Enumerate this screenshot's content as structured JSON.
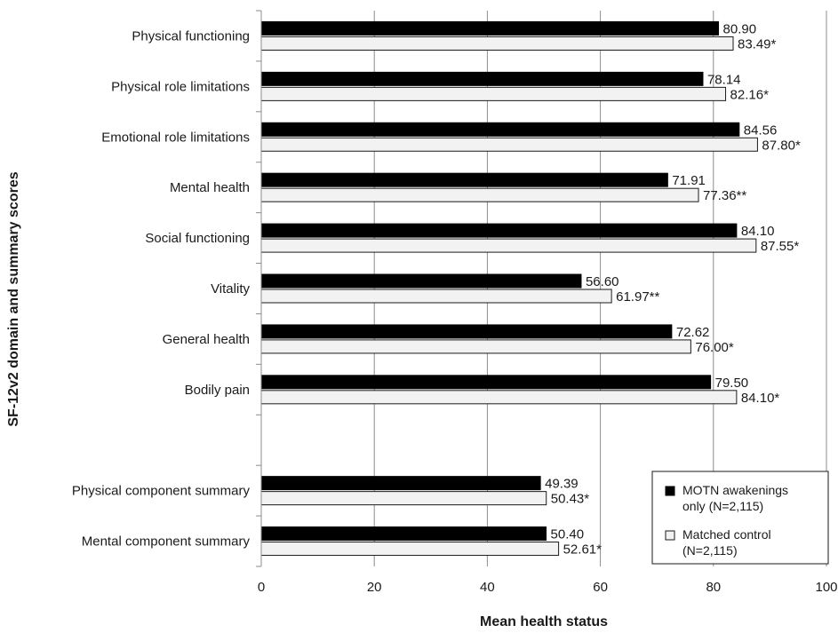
{
  "chart_data": {
    "type": "bar",
    "orientation": "horizontal",
    "xlabel": "Mean health status",
    "ylabel": "SF-12v2 domain and summary scores",
    "xlim": [
      0,
      100
    ],
    "xticks": [
      0,
      20,
      40,
      60,
      80,
      100
    ],
    "grid": "vertical",
    "legend_position": "bottom-right",
    "categories": [
      "Physical functioning",
      "Physical role limitations",
      "Emotional role limitations",
      "Mental health",
      "Social functioning",
      "Vitality",
      "General health",
      "Bodily pain",
      "",
      "Physical component summary",
      "Mental component summary"
    ],
    "series": [
      {
        "name": "MOTN awakenings only (N=2,115)",
        "color": "#000000",
        "values": [
          80.9,
          78.14,
          84.56,
          71.91,
          84.1,
          56.6,
          72.62,
          79.5,
          null,
          49.39,
          50.4
        ],
        "labels": [
          "80.90",
          "78.14",
          "84.56",
          "71.91",
          "84.10",
          "56.60",
          "72.62",
          "79.50",
          "",
          "49.39",
          "50.40"
        ]
      },
      {
        "name": "Matched control (N=2,115)",
        "color": "#f2f2f2",
        "values": [
          83.49,
          82.16,
          87.8,
          77.36,
          87.55,
          61.97,
          76.0,
          84.1,
          null,
          50.43,
          52.61
        ],
        "labels": [
          "83.49*",
          "82.16*",
          "87.80*",
          "77.36**",
          "87.55*",
          "61.97**",
          "76.00*",
          "84.10*",
          "",
          "50.43*",
          "52.61*"
        ]
      }
    ],
    "legend": {
      "entries": [
        {
          "line1": "MOTN awakenings",
          "line2": "only (N=2,115)",
          "color": "#000000"
        },
        {
          "line1": "Matched control",
          "line2": "(N=2,115)",
          "color": "#f2f2f2"
        }
      ]
    }
  }
}
